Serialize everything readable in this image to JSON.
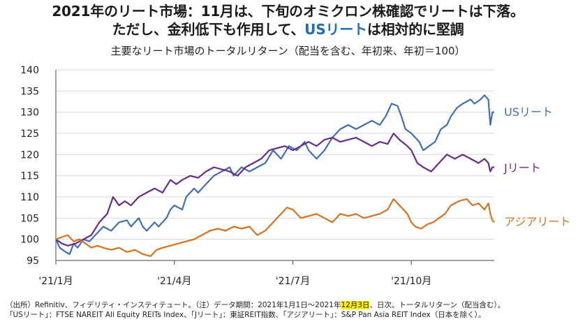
{
  "header": {
    "title_line1": "2021年のリート市場：11月は、下旬のオミクロン株確認でリートは下落。",
    "title_line2_pre": "ただし、金利低下も作用して、",
    "title_line2_hl": "USリート",
    "title_line2_post": "は相対的に堅調",
    "subtitle": "主要なリート市場のトータルリターン（配当を含む、年初来、年初＝100）"
  },
  "footnote": {
    "line1_pre": "（出所）Refinitiv、フィデリティ・インスティテュート。（注）データ期間：2021年1月1日～2021年",
    "line1_hl": "12月3日",
    "line1_post": "、日次。トータルリターン（配当含む）。",
    "line2": "「USリート」：FTSE NAREIT All Equity REITs Index、「Jリート」：東証REIT指数、「アジアリート」：S&P Pan Asia REIT Index（日本を除く）。"
  },
  "chart_data": {
    "type": "line",
    "title": "主要なリート市場のトータルリターン（配当を含む、年初来、年初＝100）",
    "xlabel": "",
    "ylabel": "",
    "x_range": [
      0,
      11.1
    ],
    "ylim": [
      95,
      140
    ],
    "yticks": [
      95,
      100,
      105,
      110,
      115,
      120,
      125,
      130,
      135,
      140
    ],
    "xtick_labels": [
      {
        "label": "'21/1月",
        "x": 0
      },
      {
        "label": "'21/4月",
        "x": 3
      },
      {
        "label": "'21/7月",
        "x": 6
      },
      {
        "label": "'21/10月",
        "x": 9
      }
    ],
    "grid": "horizontal",
    "legend": "labels at right end of each series",
    "series": [
      {
        "name": "USリート",
        "color": "#3f6eb5",
        "label_color": "#3f6eb5",
        "points": [
          [
            0,
            100
          ],
          [
            0.1,
            98
          ],
          [
            0.25,
            97
          ],
          [
            0.35,
            96.5
          ],
          [
            0.45,
            99
          ],
          [
            0.55,
            98
          ],
          [
            0.7,
            100
          ],
          [
            0.85,
            99.5
          ],
          [
            1,
            101
          ],
          [
            1.2,
            103
          ],
          [
            1.4,
            102
          ],
          [
            1.6,
            104
          ],
          [
            1.8,
            104.5
          ],
          [
            1.9,
            103
          ],
          [
            2.1,
            105
          ],
          [
            2.2,
            103
          ],
          [
            2.3,
            102
          ],
          [
            2.5,
            104
          ],
          [
            2.6,
            103
          ],
          [
            2.8,
            105
          ],
          [
            2.9,
            107
          ],
          [
            3,
            108
          ],
          [
            3.2,
            107
          ],
          [
            3.3,
            110
          ],
          [
            3.5,
            112
          ],
          [
            3.6,
            111
          ],
          [
            3.8,
            113
          ],
          [
            4,
            115
          ],
          [
            4.2,
            116
          ],
          [
            4.4,
            117
          ],
          [
            4.5,
            115
          ],
          [
            4.7,
            117
          ],
          [
            4.9,
            116
          ],
          [
            5.1,
            117
          ],
          [
            5.3,
            118
          ],
          [
            5.5,
            121
          ],
          [
            5.7,
            119
          ],
          [
            5.9,
            122
          ],
          [
            6.1,
            121
          ],
          [
            6.3,
            123
          ],
          [
            6.4,
            121
          ],
          [
            6.6,
            119
          ],
          [
            6.8,
            121
          ],
          [
            7,
            124
          ],
          [
            7.2,
            126
          ],
          [
            7.4,
            127
          ],
          [
            7.6,
            126
          ],
          [
            7.8,
            127
          ],
          [
            8,
            128
          ],
          [
            8.2,
            127
          ],
          [
            8.35,
            129
          ],
          [
            8.5,
            132
          ],
          [
            8.65,
            131.5
          ],
          [
            8.75,
            129
          ],
          [
            8.85,
            126
          ],
          [
            9,
            125
          ],
          [
            9.2,
            123
          ],
          [
            9.3,
            121
          ],
          [
            9.45,
            122
          ],
          [
            9.6,
            123
          ],
          [
            9.75,
            126
          ],
          [
            9.9,
            127
          ],
          [
            10,
            129
          ],
          [
            10.15,
            131
          ],
          [
            10.3,
            132
          ],
          [
            10.5,
            133
          ],
          [
            10.6,
            132
          ],
          [
            10.75,
            133
          ],
          [
            10.85,
            134
          ],
          [
            10.95,
            133
          ],
          [
            11.0,
            127
          ],
          [
            11.05,
            130
          ],
          [
            11.1,
            130
          ]
        ]
      },
      {
        "name": "Jリート",
        "color": "#6a2a8c",
        "label_color": "#6a2a8c",
        "points": [
          [
            0,
            100
          ],
          [
            0.15,
            99
          ],
          [
            0.3,
            98.5
          ],
          [
            0.5,
            99
          ],
          [
            0.7,
            100
          ],
          [
            0.9,
            101
          ],
          [
            1.1,
            104
          ],
          [
            1.3,
            106
          ],
          [
            1.45,
            110
          ],
          [
            1.6,
            108
          ],
          [
            1.75,
            109
          ],
          [
            1.9,
            108
          ],
          [
            2.1,
            110
          ],
          [
            2.3,
            111
          ],
          [
            2.5,
            112
          ],
          [
            2.7,
            111
          ],
          [
            2.9,
            114
          ],
          [
            3.05,
            113
          ],
          [
            3.2,
            114
          ],
          [
            3.4,
            115
          ],
          [
            3.6,
            114.5
          ],
          [
            3.8,
            116
          ],
          [
            4,
            117
          ],
          [
            4.2,
            116.5
          ],
          [
            4.4,
            116
          ],
          [
            4.6,
            115
          ],
          [
            4.8,
            117
          ],
          [
            5,
            118
          ],
          [
            5.2,
            119
          ],
          [
            5.4,
            121
          ],
          [
            5.6,
            121.5
          ],
          [
            5.8,
            122
          ],
          [
            6,
            121
          ],
          [
            6.2,
            122
          ],
          [
            6.4,
            123
          ],
          [
            6.6,
            122
          ],
          [
            6.8,
            123.5
          ],
          [
            7,
            124
          ],
          [
            7.2,
            123
          ],
          [
            7.4,
            123.5
          ],
          [
            7.6,
            124
          ],
          [
            7.8,
            123
          ],
          [
            8,
            122
          ],
          [
            8.2,
            123
          ],
          [
            8.4,
            122.5
          ],
          [
            8.55,
            125
          ],
          [
            8.7,
            123.5
          ],
          [
            8.9,
            122
          ],
          [
            9,
            121
          ],
          [
            9.15,
            118
          ],
          [
            9.3,
            117
          ],
          [
            9.5,
            116
          ],
          [
            9.7,
            118
          ],
          [
            9.9,
            120
          ],
          [
            10.1,
            119
          ],
          [
            10.3,
            120
          ],
          [
            10.5,
            119
          ],
          [
            10.7,
            118
          ],
          [
            10.85,
            119
          ],
          [
            10.95,
            118
          ],
          [
            11.0,
            116
          ],
          [
            11.05,
            117
          ],
          [
            11.1,
            117
          ]
        ]
      },
      {
        "name": "アジアリート",
        "color": "#d9711f",
        "label_color": "#d9711f",
        "points": [
          [
            0,
            100
          ],
          [
            0.15,
            100.5
          ],
          [
            0.3,
            101
          ],
          [
            0.45,
            99.5
          ],
          [
            0.6,
            100
          ],
          [
            0.75,
            99
          ],
          [
            0.9,
            98
          ],
          [
            1.05,
            98.5
          ],
          [
            1.2,
            98
          ],
          [
            1.4,
            97.5
          ],
          [
            1.6,
            98
          ],
          [
            1.8,
            97
          ],
          [
            2,
            97.5
          ],
          [
            2.2,
            96.5
          ],
          [
            2.4,
            96
          ],
          [
            2.55,
            97.5
          ],
          [
            2.7,
            98
          ],
          [
            2.9,
            98.5
          ],
          [
            3.1,
            99
          ],
          [
            3.3,
            99.5
          ],
          [
            3.5,
            100
          ],
          [
            3.7,
            101
          ],
          [
            3.9,
            102
          ],
          [
            4.1,
            102.5
          ],
          [
            4.3,
            102
          ],
          [
            4.5,
            103
          ],
          [
            4.7,
            102.5
          ],
          [
            4.9,
            103
          ],
          [
            5.1,
            101
          ],
          [
            5.3,
            102
          ],
          [
            5.5,
            104
          ],
          [
            5.7,
            106
          ],
          [
            5.85,
            107.5
          ],
          [
            6,
            107
          ],
          [
            6.2,
            105
          ],
          [
            6.4,
            105.5
          ],
          [
            6.6,
            106
          ],
          [
            6.8,
            105
          ],
          [
            7,
            104
          ],
          [
            7.2,
            106
          ],
          [
            7.4,
            105.5
          ],
          [
            7.6,
            106
          ],
          [
            7.8,
            105
          ],
          [
            8,
            105.5
          ],
          [
            8.2,
            106
          ],
          [
            8.4,
            107
          ],
          [
            8.55,
            109.5
          ],
          [
            8.7,
            108
          ],
          [
            8.9,
            106
          ],
          [
            9,
            104
          ],
          [
            9.1,
            103
          ],
          [
            9.25,
            102.5
          ],
          [
            9.4,
            103.5
          ],
          [
            9.55,
            104
          ],
          [
            9.7,
            105
          ],
          [
            9.85,
            106
          ],
          [
            10,
            108
          ],
          [
            10.2,
            109
          ],
          [
            10.4,
            109.5
          ],
          [
            10.55,
            108
          ],
          [
            10.7,
            108.5
          ],
          [
            10.85,
            107
          ],
          [
            10.95,
            108.5
          ],
          [
            11.0,
            106
          ],
          [
            11.05,
            104.5
          ],
          [
            11.1,
            104
          ]
        ]
      }
    ]
  }
}
